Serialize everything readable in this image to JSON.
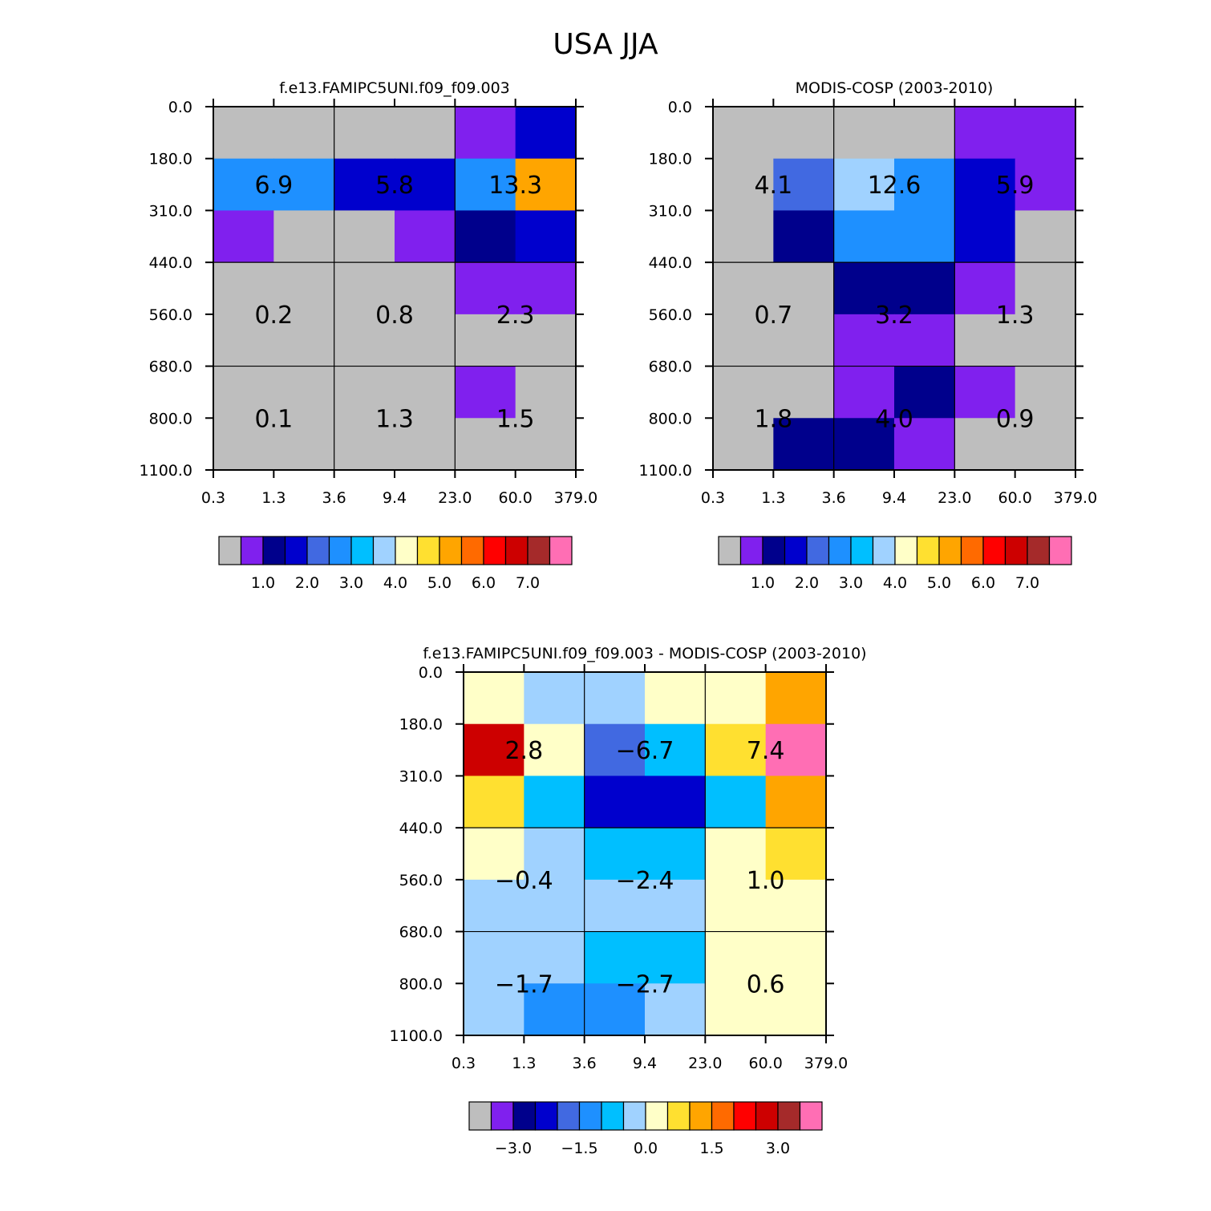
{
  "figure_title": "USA JJA",
  "palette": [
    "#bebebe",
    "#8020ee",
    "#00008c",
    "#0000cd",
    "#4169e1",
    "#1e90ff",
    "#00bfff",
    "#a0d2ff",
    "#ffffc8",
    "#ffe030",
    "#ffa500",
    "#ff6a00",
    "#ff0000",
    "#cd0000",
    "#a52a2a",
    "#ff6eb4"
  ],
  "chart_data": [
    {
      "type": "heatmap",
      "title": "f.e13.FAMIPC5UNI.f09_f09.003",
      "x_tick_labels": [
        "0.3",
        "1.3",
        "3.6",
        "9.4",
        "23.0",
        "60.0",
        "379.0"
      ],
      "y_tick_labels": [
        "0.0",
        "180.0",
        "310.0",
        "440.0",
        "560.0",
        "680.0",
        "800.0",
        "1100.0"
      ],
      "cell_color_index": [
        [
          0,
          0,
          0,
          0,
          1,
          3
        ],
        [
          5,
          5,
          3,
          3,
          5,
          10
        ],
        [
          1,
          0,
          0,
          1,
          2,
          3
        ],
        [
          0,
          0,
          0,
          0,
          1,
          1
        ],
        [
          0,
          0,
          0,
          0,
          0,
          0
        ],
        [
          0,
          0,
          0,
          0,
          1,
          0
        ],
        [
          0,
          0,
          0,
          0,
          0,
          0
        ]
      ],
      "group_values": [
        [
          "6.9",
          "5.8",
          "13.3"
        ],
        [
          "0.2",
          "0.8",
          "2.3"
        ],
        [
          "0.1",
          "1.3",
          "1.5"
        ]
      ],
      "colorbar_labels": [
        "1.0",
        "2.0",
        "3.0",
        "4.0",
        "5.0",
        "6.0",
        "7.0"
      ]
    },
    {
      "type": "heatmap",
      "title": "MODIS-COSP (2003-2010)",
      "x_tick_labels": [
        "0.3",
        "1.3",
        "3.6",
        "9.4",
        "23.0",
        "60.0",
        "379.0"
      ],
      "y_tick_labels": [
        "0.0",
        "180.0",
        "310.0",
        "440.0",
        "560.0",
        "680.0",
        "800.0",
        "1100.0"
      ],
      "cell_color_index": [
        [
          0,
          0,
          0,
          0,
          1,
          1
        ],
        [
          0,
          4,
          7,
          5,
          3,
          1
        ],
        [
          0,
          2,
          5,
          5,
          3,
          0
        ],
        [
          0,
          0,
          2,
          2,
          1,
          0
        ],
        [
          0,
          0,
          1,
          1,
          0,
          0
        ],
        [
          0,
          0,
          1,
          2,
          1,
          0
        ],
        [
          0,
          2,
          2,
          1,
          0,
          0
        ]
      ],
      "group_values": [
        [
          "4.1",
          "12.6",
          "5.9"
        ],
        [
          "0.7",
          "3.2",
          "1.3"
        ],
        [
          "1.8",
          "4.0",
          "0.9"
        ]
      ],
      "colorbar_labels": [
        "1.0",
        "2.0",
        "3.0",
        "4.0",
        "5.0",
        "6.0",
        "7.0"
      ]
    },
    {
      "type": "heatmap",
      "title": "f.e13.FAMIPC5UNI.f09_f09.003 - MODIS-COSP (2003-2010)",
      "x_tick_labels": [
        "0.3",
        "1.3",
        "3.6",
        "9.4",
        "23.0",
        "60.0",
        "379.0"
      ],
      "y_tick_labels": [
        "0.0",
        "180.0",
        "310.0",
        "440.0",
        "560.0",
        "680.0",
        "800.0",
        "1100.0"
      ],
      "cell_color_index": [
        [
          8,
          7,
          7,
          8,
          8,
          10
        ],
        [
          13,
          8,
          4,
          6,
          9,
          15
        ],
        [
          9,
          6,
          3,
          3,
          6,
          10
        ],
        [
          8,
          7,
          6,
          6,
          8,
          9
        ],
        [
          7,
          7,
          7,
          7,
          8,
          8
        ],
        [
          7,
          7,
          6,
          6,
          8,
          8
        ],
        [
          7,
          5,
          5,
          7,
          8,
          8
        ]
      ],
      "group_values": [
        [
          "2.8",
          "-6.7",
          "7.4"
        ],
        [
          "-0.4",
          "-2.4",
          "1.0"
        ],
        [
          "-1.7",
          "-2.7",
          "0.6"
        ]
      ],
      "colorbar_labels": [
        "-3.0",
        "-1.5",
        "0.0",
        "1.5",
        "3.0"
      ]
    }
  ]
}
